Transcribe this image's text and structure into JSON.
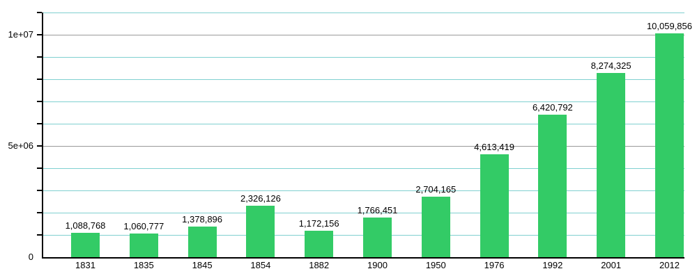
{
  "chart": {
    "background_color": "#ffffff",
    "bar_color": "#33cb66",
    "minor_grid_color": "#7fd0d0",
    "major_grid_color": "#999999",
    "axis_color": "#000000",
    "text_color": "#000000"
  },
  "chart_data": {
    "type": "bar",
    "title": "",
    "xlabel": "",
    "ylabel": "",
    "categories": [
      "1831",
      "1835",
      "1845",
      "1854",
      "1882",
      "1900",
      "1950",
      "1976",
      "1992",
      "2001",
      "2012"
    ],
    "values": [
      1088768,
      1060777,
      1378896,
      2326126,
      1172156,
      1766451,
      2704165,
      4613419,
      6420792,
      8274325,
      10059856
    ],
    "value_labels": [
      "1,088,768",
      "1,060,777",
      "1,378,896",
      "2,326,126",
      "1,172,156",
      "1,766,451",
      "2,704,165",
      "4,613,419",
      "6,420,792",
      "8,274,325",
      "10,059,856"
    ],
    "ylim": [
      0,
      11000000
    ],
    "ytick_step": 1000000,
    "major_gridlines": [
      5000000,
      10000000
    ],
    "yticks_labeled": [
      {
        "value": 0,
        "label": "0"
      },
      {
        "value": 5000000,
        "label": "5e+06"
      },
      {
        "value": 10000000,
        "label": "1e+07"
      }
    ],
    "grid": true,
    "legend": "none",
    "bar_value_labels_shown": true
  }
}
